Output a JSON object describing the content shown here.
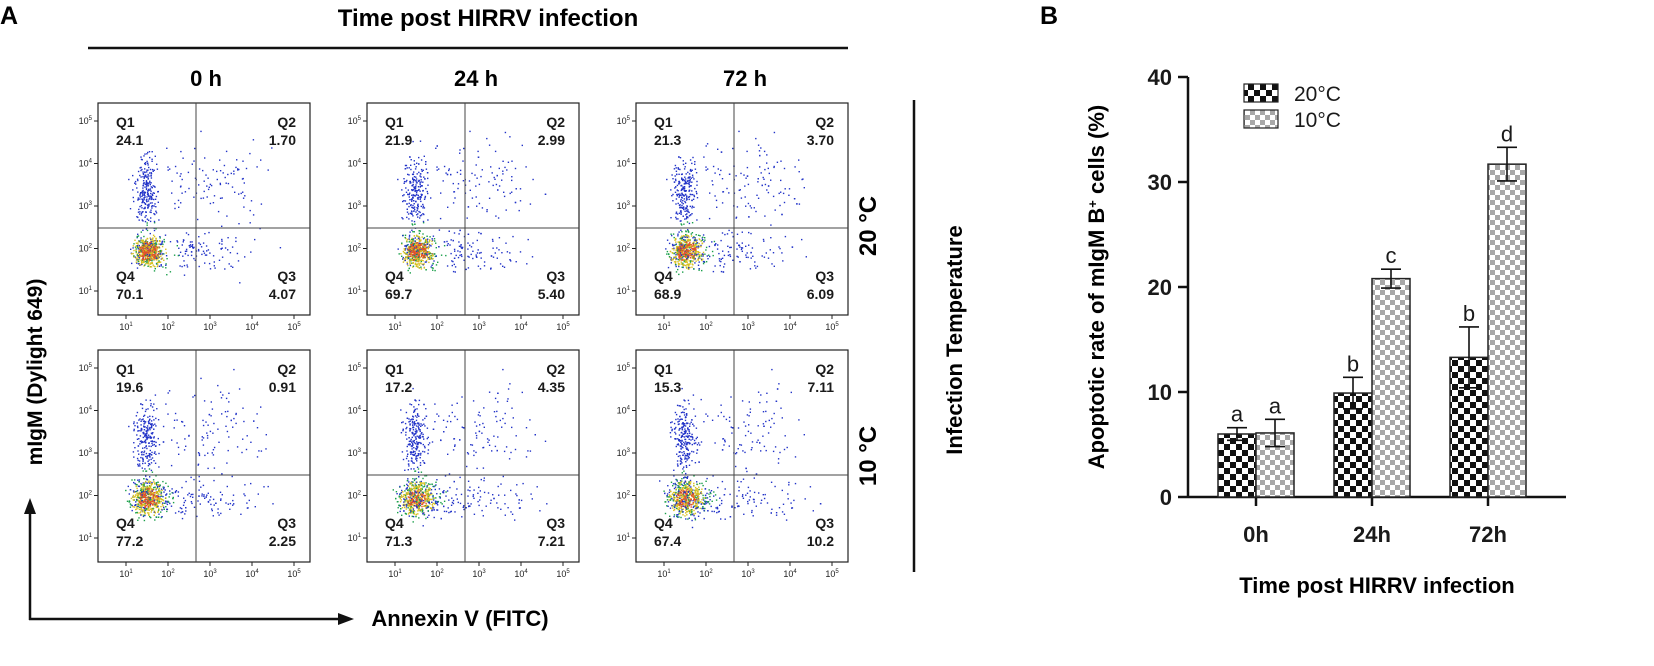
{
  "panel_a": {
    "label": "A",
    "header": "Time post HIRRV infection",
    "columns": [
      "0 h",
      "24 h",
      "72 h"
    ],
    "rows": [
      "20 °C",
      "10 °C"
    ],
    "side_label": "Infection Temperature",
    "y_axis_label": "mIgM (Dylight 649)",
    "x_axis_label": "Annexin V (FITC)",
    "tick_base": "10",
    "tick_exponents": [
      "1",
      "2",
      "3",
      "4",
      "5"
    ],
    "quadrant_names": [
      "Q1",
      "Q2",
      "Q3",
      "Q4"
    ],
    "plots": [
      {
        "row": 0,
        "col": 0,
        "q1": "24.1",
        "q2": "1.70",
        "q3": "4.07",
        "q4": "70.1"
      },
      {
        "row": 0,
        "col": 1,
        "q1": "21.9",
        "q2": "2.99",
        "q3": "5.40",
        "q4": "69.7"
      },
      {
        "row": 0,
        "col": 2,
        "q1": "21.3",
        "q2": "3.70",
        "q3": "6.09",
        "q4": "68.9"
      },
      {
        "row": 1,
        "col": 0,
        "q1": "19.6",
        "q2": "0.91",
        "q3": "2.25",
        "q4": "77.2"
      },
      {
        "row": 1,
        "col": 1,
        "q1": "17.2",
        "q2": "4.35",
        "q3": "7.21",
        "q4": "71.3"
      },
      {
        "row": 1,
        "col": 2,
        "q1": "15.3",
        "q2": "7.11",
        "q3": "10.2",
        "q4": "67.4"
      }
    ]
  },
  "chart_data": {
    "type": "bar",
    "panel_label": "B",
    "title": "",
    "categories": [
      "0h",
      "24h",
      "72h"
    ],
    "series": [
      {
        "name": "20°C",
        "values": [
          6.0,
          9.9,
          13.3
        ],
        "errors": [
          0.6,
          1.5,
          2.9
        ],
        "letters": [
          "a",
          "b",
          "b"
        ]
      },
      {
        "name": "10°C",
        "values": [
          6.1,
          20.8,
          31.7
        ],
        "errors": [
          1.3,
          0.9,
          1.6
        ],
        "letters": [
          "a",
          "c",
          "d"
        ]
      }
    ],
    "xlabel": "Time post HIRRV infection",
    "ylabel_main": "Apoptotic rate of mIgM B",
    "ylabel_sup": "+",
    "ylabel_tail": " cells (%)",
    "ylim": [
      0,
      40
    ],
    "yticks": [
      0,
      10,
      20,
      30,
      40
    ],
    "legend_position": "top-left"
  }
}
